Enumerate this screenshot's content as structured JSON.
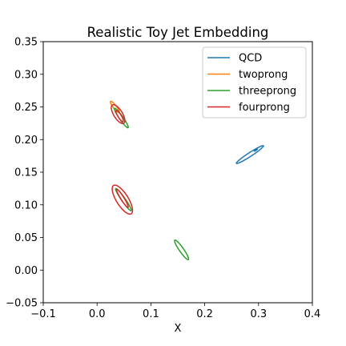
{
  "chart_data": {
    "type": "contour",
    "title": "Realistic Toy Jet Embedding",
    "xlabel": "X",
    "ylabel": "",
    "xlim": [
      -0.1,
      0.4
    ],
    "ylim": [
      -0.05,
      0.35
    ],
    "xticks": [
      -0.1,
      0.0,
      0.1,
      0.2,
      0.3,
      0.4
    ],
    "xtick_labels": [
      "−0.1",
      "0.0",
      "0.1",
      "0.2",
      "0.3",
      "0.4"
    ],
    "yticks": [
      -0.05,
      0.0,
      0.05,
      0.1,
      0.15,
      0.2,
      0.25,
      0.3,
      0.35
    ],
    "ytick_labels": [
      "−0.05",
      "0.00",
      "0.05",
      "0.10",
      "0.15",
      "0.20",
      "0.25",
      "0.30",
      "0.35"
    ],
    "grid": false,
    "legend_position": "top-right",
    "series": [
      {
        "name": "QCD",
        "color": "#1f77b4",
        "contours": [
          {
            "cx": 0.284,
            "cy": 0.177,
            "rx": 0.03,
            "ry": 0.0035,
            "angle_deg": 33
          },
          {
            "cx": 0.295,
            "cy": 0.184,
            "rx": 0.0035,
            "ry": 0.0008,
            "angle_deg": 33
          }
        ]
      },
      {
        "name": "twoprong",
        "color": "#ff7f0e",
        "contours": [
          {
            "cx": 0.033,
            "cy": 0.25,
            "rx": 0.013,
            "ry": 0.003,
            "angle_deg": -52
          }
        ]
      },
      {
        "name": "threeprong",
        "color": "#2ca02c",
        "contours": [
          {
            "cx": 0.045,
            "cy": 0.233,
            "rx": 0.022,
            "ry": 0.0035,
            "angle_deg": -55
          },
          {
            "cx": 0.049,
            "cy": 0.108,
            "rx": 0.025,
            "ry": 0.0035,
            "angle_deg": -55
          },
          {
            "cx": 0.157,
            "cy": 0.031,
            "rx": 0.022,
            "ry": 0.004,
            "angle_deg": -55
          }
        ]
      },
      {
        "name": "fourprong",
        "color": "#d62728",
        "contours": [
          {
            "cx": 0.039,
            "cy": 0.239,
            "rx": 0.02,
            "ry": 0.008,
            "angle_deg": -58
          },
          {
            "cx": 0.042,
            "cy": 0.236,
            "rx": 0.012,
            "ry": 0.003,
            "angle_deg": -58
          },
          {
            "cx": 0.047,
            "cy": 0.108,
            "rx": 0.031,
            "ry": 0.011,
            "angle_deg": -58
          },
          {
            "cx": 0.047,
            "cy": 0.11,
            "rx": 0.02,
            "ry": 0.003,
            "angle_deg": -58
          }
        ]
      }
    ]
  }
}
